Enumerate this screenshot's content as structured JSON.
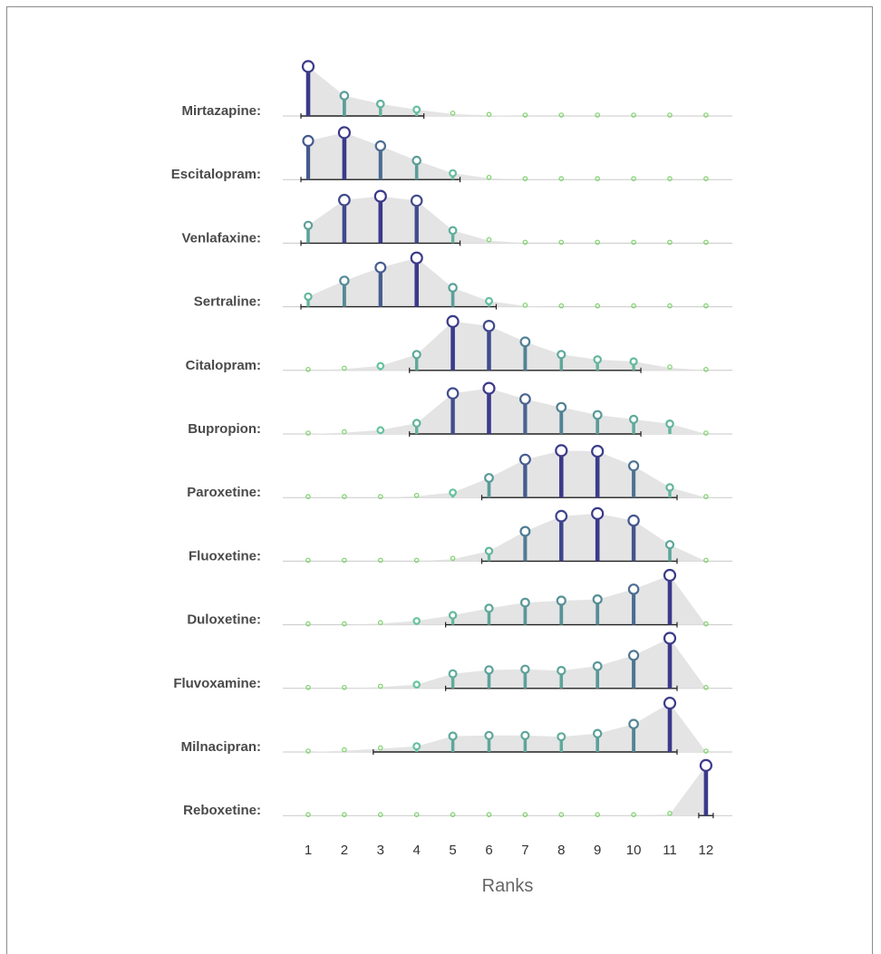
{
  "chart_data": {
    "type": "lollipop-ridgeline",
    "xlabel": "Ranks",
    "x": [
      1,
      2,
      3,
      4,
      5,
      6,
      7,
      8,
      9,
      10,
      11,
      12
    ],
    "x_tick_labels": [
      "1",
      "2",
      "3",
      "4",
      "5",
      "6",
      "7",
      "8",
      "9",
      "10",
      "11",
      "12"
    ],
    "rows": [
      {
        "label": "Mirtazapine:",
        "values": [
          0.78,
          0.32,
          0.19,
          0.1,
          0.03,
          0.01,
          0,
          0,
          0,
          0,
          0,
          0
        ],
        "interval": [
          0.8,
          4.2
        ]
      },
      {
        "label": "Escitalopram:",
        "values": [
          0.61,
          0.74,
          0.53,
          0.3,
          0.1,
          0.02,
          0,
          0,
          0,
          0,
          0,
          0
        ],
        "interval": [
          0.8,
          5.2
        ]
      },
      {
        "label": "Venlafaxine:",
        "values": [
          0.28,
          0.68,
          0.74,
          0.67,
          0.2,
          0.04,
          0,
          0,
          0,
          0,
          0,
          0
        ],
        "interval": [
          0.8,
          5.2
        ]
      },
      {
        "label": "Sertraline:",
        "values": [
          0.16,
          0.41,
          0.62,
          0.77,
          0.3,
          0.09,
          0.01,
          0,
          0,
          0,
          0,
          0
        ],
        "interval": [
          0.8,
          6.2
        ]
      },
      {
        "label": "Citalopram:",
        "values": [
          0,
          0.02,
          0.07,
          0.25,
          0.77,
          0.7,
          0.45,
          0.25,
          0.17,
          0.14,
          0.04,
          0
        ],
        "interval": [
          3.8,
          10.2
        ]
      },
      {
        "label": "Bupropion:",
        "values": [
          0,
          0.02,
          0.06,
          0.17,
          0.64,
          0.72,
          0.55,
          0.42,
          0.3,
          0.23,
          0.16,
          0
        ],
        "interval": [
          3.8,
          10.2
        ]
      },
      {
        "label": "Paroxetine:",
        "values": [
          0,
          0,
          0,
          0.02,
          0.08,
          0.31,
          0.6,
          0.74,
          0.73,
          0.5,
          0.16,
          0
        ],
        "interval": [
          5.8,
          11.2
        ]
      },
      {
        "label": "Fluoxetine:",
        "values": [
          0,
          0,
          0,
          0,
          0.03,
          0.16,
          0.47,
          0.71,
          0.75,
          0.64,
          0.26,
          0
        ],
        "interval": [
          5.8,
          11.2
        ]
      },
      {
        "label": "Duloxetine:",
        "values": [
          0,
          0,
          0.02,
          0.06,
          0.15,
          0.26,
          0.35,
          0.38,
          0.4,
          0.56,
          0.78,
          0
        ],
        "interval": [
          4.8,
          11.2
        ]
      },
      {
        "label": "Fluvoxamine:",
        "values": [
          0,
          0,
          0.02,
          0.06,
          0.23,
          0.29,
          0.3,
          0.28,
          0.35,
          0.52,
          0.79,
          0
        ],
        "interval": [
          4.8,
          11.2
        ]
      },
      {
        "label": "Milnacipran:",
        "values": [
          0,
          0.02,
          0.05,
          0.09,
          0.25,
          0.26,
          0.26,
          0.24,
          0.29,
          0.44,
          0.77,
          0
        ],
        "interval": [
          2.8,
          11.2
        ]
      },
      {
        "label": "Reboxetine:",
        "values": [
          0,
          0,
          0,
          0,
          0,
          0,
          0,
          0,
          0,
          0,
          0.02,
          0.79
        ],
        "interval": [
          11.8,
          12.2
        ]
      }
    ],
    "colors": {
      "fill": "#e4e4e4",
      "baseline": "#c8c8c8",
      "interval": "#222222",
      "low": "#69c9a0",
      "high": "#3b3a8a",
      "marker_fill": "#ffffff",
      "tiny_marker": "#7cd36a"
    }
  }
}
